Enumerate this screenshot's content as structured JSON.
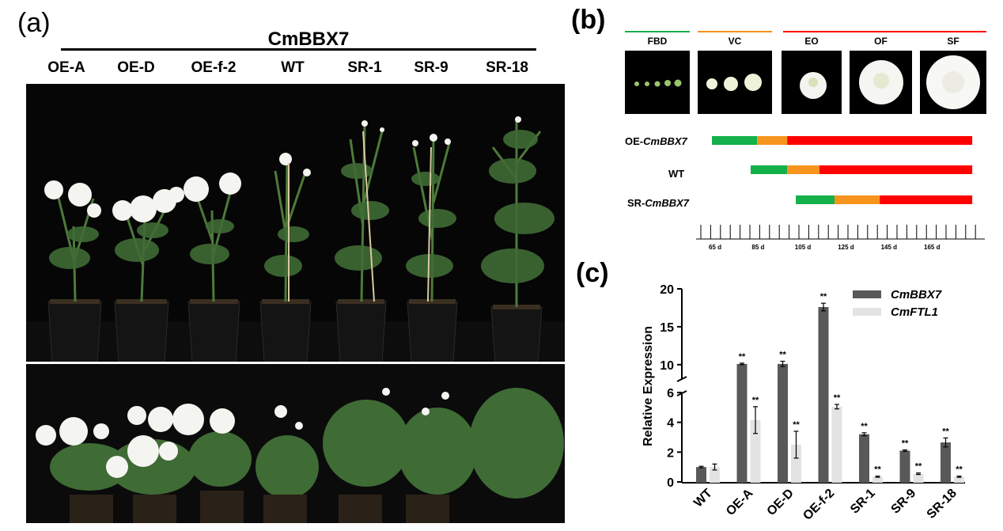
{
  "panel_a": {
    "label": "(a)",
    "title": "CmBBX7",
    "columns": [
      "OE-A",
      "OE-D",
      "OE-f-2",
      "WT",
      "SR-1",
      "SR-9",
      "SR-18"
    ]
  },
  "panel_b": {
    "label": "(b)",
    "stages": [
      {
        "code": "FBD",
        "group": "green"
      },
      {
        "code": "VC",
        "group": "orange"
      },
      {
        "code": "EO",
        "group": "red"
      },
      {
        "code": "OF",
        "group": "red"
      },
      {
        "code": "SF",
        "group": "red"
      }
    ],
    "rows": [
      {
        "prefix": "OE-",
        "italic": "CmBBX7",
        "text": ""
      },
      {
        "prefix": "",
        "italic": "",
        "text": "WT"
      },
      {
        "prefix": "SR-",
        "italic": "CmBBX7",
        "text": ""
      }
    ],
    "timeline_ticks": [
      "65 d",
      "85 d",
      "105 d",
      "125 d",
      "145 d",
      "165 d"
    ],
    "colors": {
      "green": "#14b04a",
      "orange": "#f7941d",
      "red": "#ff0000"
    }
  },
  "panel_c": {
    "label": "(c)"
  },
  "chart_data": {
    "type": "bar",
    "ylabel": "Relative Expression",
    "categories": [
      "WT",
      "OE-A",
      "OE-D",
      "OE-f-2",
      "SR-1",
      "SR-9",
      "SR-18"
    ],
    "y_axis": {
      "lower_range": [
        0,
        6
      ],
      "upper_range": [
        8,
        20
      ],
      "lower_ticks": [
        "0",
        "2",
        "4",
        "6"
      ],
      "upper_ticks": [
        "10",
        "15",
        "20"
      ],
      "broken": true
    },
    "series": [
      {
        "name": "CmBBX7",
        "color": "#595959",
        "values": [
          1.0,
          10.1,
          10.1,
          17.6,
          3.2,
          2.1,
          2.65
        ],
        "errors": [
          0.05,
          0.1,
          0.35,
          0.5,
          0.1,
          0.05,
          0.3
        ],
        "annotations": [
          "",
          "**",
          "**",
          "**",
          "**",
          "**",
          "**"
        ]
      },
      {
        "name": "CmFTL1",
        "color": "#e3e3e3",
        "values": [
          1.0,
          4.15,
          2.5,
          5.05,
          0.35,
          0.55,
          0.35
        ],
        "errors": [
          0.2,
          0.9,
          0.9,
          0.15,
          0.04,
          0.05,
          0.04
        ],
        "annotations": [
          "",
          "**",
          "**",
          "**",
          "**",
          "**",
          "**"
        ]
      }
    ],
    "legend_position": "top-right"
  }
}
